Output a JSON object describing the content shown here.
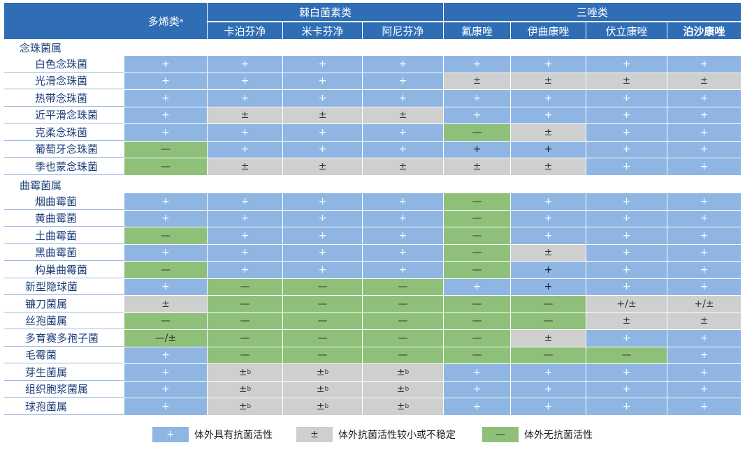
{
  "header": {
    "polyene": "多烯类",
    "polyene_sup": "a",
    "echinocandins": "棘白菌素类",
    "azoles": "三唑类",
    "drugs": [
      "卡泊芬净",
      "米卡芬净",
      "阿尼芬净",
      "氟康唑",
      "伊曲康唑",
      "伏立康唑",
      "泊沙康唑"
    ]
  },
  "groups": {
    "candida": "念珠菌属",
    "aspergillus": "曲霉菌属"
  },
  "rows": [
    {
      "label": "白色念珠菌",
      "values": [
        "+",
        "+",
        "+",
        "+",
        "+",
        "+",
        "+",
        "+"
      ]
    },
    {
      "label": "光滑念珠菌",
      "values": [
        "+",
        "+",
        "+",
        "+",
        "±",
        "±",
        "±",
        "±"
      ]
    },
    {
      "label": "热带念珠菌",
      "values": [
        "+",
        "+",
        "+",
        "+",
        "+",
        "+",
        "+",
        "+"
      ]
    },
    {
      "label": "近平滑念珠菌",
      "values": [
        "+",
        "±",
        "±",
        "±",
        "+",
        "+",
        "+",
        "+"
      ]
    },
    {
      "label": "克柔念珠菌",
      "values": [
        "+",
        "+",
        "+",
        "+",
        "—",
        "±",
        "+",
        "+"
      ]
    },
    {
      "label": "葡萄牙念珠菌",
      "values": [
        "—",
        "+",
        "+",
        "+",
        "+d",
        "+d",
        "+",
        "+"
      ]
    },
    {
      "label": "季也蒙念珠菌",
      "values": [
        "—",
        "±",
        "±",
        "±",
        "±",
        "±",
        "+",
        "+"
      ]
    },
    {
      "label": "烟曲霉菌",
      "values": [
        "+",
        "+",
        "+",
        "+",
        "—",
        "+",
        "+",
        "+"
      ]
    },
    {
      "label": "黄曲霉菌",
      "values": [
        "+",
        "+",
        "+",
        "+",
        "—",
        "+",
        "+",
        "+"
      ]
    },
    {
      "label": "土曲霉菌",
      "values": [
        "—",
        "+",
        "+",
        "+",
        "—",
        "+",
        "+",
        "+"
      ]
    },
    {
      "label": "黑曲霉菌",
      "values": [
        "+",
        "+",
        "+",
        "+",
        "—",
        "±",
        "+",
        "+"
      ]
    },
    {
      "label": "构巢曲霉菌",
      "values": [
        "—",
        "+",
        "+",
        "+",
        "—",
        "+d",
        "+",
        "+"
      ]
    },
    {
      "label": "新型隐球菌",
      "values": [
        "+",
        "—",
        "—",
        "—",
        "+",
        "+d",
        "+",
        "+"
      ]
    },
    {
      "label": "镰刀菌属",
      "values": [
        "±",
        "—",
        "—",
        "—",
        "—",
        "—",
        "+/±",
        "+/±"
      ]
    },
    {
      "label": "丝孢菌属",
      "values": [
        "—",
        "—",
        "—",
        "—",
        "—",
        "—",
        "±",
        "±"
      ]
    },
    {
      "label": "多育赛多孢子菌",
      "values": [
        "—/±",
        "—",
        "—",
        "—",
        "—",
        "±",
        "+",
        "+"
      ]
    },
    {
      "label": "毛霉菌",
      "values": [
        "+p",
        "—",
        "—",
        "—",
        "—",
        "—",
        "—",
        "+"
      ]
    },
    {
      "label": "芽生菌属",
      "values": [
        "+",
        "±b",
        "±b",
        "±b",
        "+",
        "+",
        "+",
        "+"
      ]
    },
    {
      "label": "组织胞浆菌属",
      "values": [
        "+",
        "±b",
        "±b",
        "±b",
        "+",
        "+",
        "+",
        "+"
      ]
    },
    {
      "label": "球孢菌属",
      "values": [
        "+",
        "±b",
        "±b",
        "±b",
        "+",
        "+",
        "+",
        "+"
      ]
    }
  ],
  "legend": [
    {
      "symbol": "+",
      "text": "体外具有抗菌活性"
    },
    {
      "symbol": "±",
      "text": "体外抗菌活性较小或不稳定"
    },
    {
      "symbol": "—",
      "text": "体外无抗菌活性"
    }
  ],
  "colors": {
    "header": "#2f6db5",
    "plus": "#8fb6e3",
    "partial": "#cfcfcf",
    "none": "#8fc07a"
  }
}
